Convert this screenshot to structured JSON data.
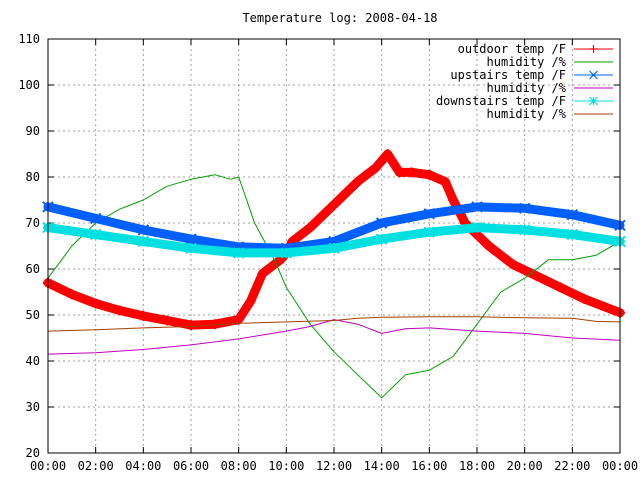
{
  "chart_data": {
    "type": "line",
    "title": "Temperature log: 2008-04-18",
    "xlabel": "",
    "ylabel": "",
    "xlim": [
      "00:00",
      "24:00"
    ],
    "ylim": [
      20,
      110
    ],
    "grid": true,
    "legend_position": "top-right",
    "x_tick_labels": [
      "00:00",
      "02:00",
      "04:00",
      "06:00",
      "08:00",
      "10:00",
      "12:00",
      "14:00",
      "16:00",
      "18:00",
      "20:00",
      "22:00",
      "00:00"
    ],
    "y_tick_labels": [
      "20",
      "30",
      "40",
      "50",
      "60",
      "70",
      "80",
      "90",
      "100",
      "110"
    ],
    "series": [
      {
        "name": "outdoor temp /F",
        "color": "#ff0000",
        "marker": "plus",
        "style": "thick",
        "points": [
          [
            "00:00",
            57
          ],
          [
            "01:00",
            54.5
          ],
          [
            "02:00",
            52.5
          ],
          [
            "03:00",
            51
          ],
          [
            "04:00",
            49.8
          ],
          [
            "05:00",
            48.8
          ],
          [
            "06:00",
            47.8
          ],
          [
            "07:00",
            48
          ],
          [
            "08:00",
            49
          ],
          [
            "08:30",
            53
          ],
          [
            "09:00",
            59
          ],
          [
            "09:45",
            62
          ],
          [
            "10:00",
            63.5
          ],
          [
            "10:15",
            66
          ],
          [
            "11:00",
            69
          ],
          [
            "12:00",
            74
          ],
          [
            "13:00",
            79
          ],
          [
            "13:45",
            82
          ],
          [
            "14:15",
            85
          ],
          [
            "14:45",
            81
          ],
          [
            "15:15",
            81
          ],
          [
            "16:00",
            80.5
          ],
          [
            "16:40",
            79
          ],
          [
            "17:00",
            75
          ],
          [
            "17:30",
            70
          ],
          [
            "18:30",
            65
          ],
          [
            "19:30",
            61
          ],
          [
            "20:30",
            58.5
          ],
          [
            "21:30",
            56
          ],
          [
            "22:30",
            53.5
          ],
          [
            "24:00",
            50.5
          ]
        ]
      },
      {
        "name": "humidity /%",
        "color": "#00a000",
        "marker": "none",
        "style": "thin",
        "points": [
          [
            "00:00",
            58
          ],
          [
            "01:00",
            65
          ],
          [
            "02:00",
            70
          ],
          [
            "03:00",
            73
          ],
          [
            "04:00",
            75
          ],
          [
            "05:00",
            78
          ],
          [
            "06:00",
            79.5
          ],
          [
            "07:00",
            80.5
          ],
          [
            "07:40",
            79.5
          ],
          [
            "08:00",
            80
          ],
          [
            "08:40",
            70
          ],
          [
            "09:30",
            62
          ],
          [
            "10:00",
            56
          ],
          [
            "11:00",
            48
          ],
          [
            "12:00",
            42
          ],
          [
            "13:00",
            37
          ],
          [
            "14:00",
            32
          ],
          [
            "15:00",
            37
          ],
          [
            "16:00",
            38
          ],
          [
            "17:00",
            41
          ],
          [
            "18:00",
            48
          ],
          [
            "19:00",
            55
          ],
          [
            "20:00",
            58
          ],
          [
            "21:00",
            62
          ],
          [
            "22:00",
            62
          ],
          [
            "23:00",
            63
          ],
          [
            "24:00",
            66
          ]
        ]
      },
      {
        "name": "upstairs temp /F",
        "color": "#0060ff",
        "marker": "x",
        "style": "thick",
        "points": [
          [
            "00:00",
            73.5
          ],
          [
            "02:00",
            71
          ],
          [
            "04:00",
            68.5
          ],
          [
            "06:00",
            66.5
          ],
          [
            "08:00",
            64.8
          ],
          [
            "10:00",
            64.5
          ],
          [
            "12:00",
            66
          ],
          [
            "14:00",
            70
          ],
          [
            "16:00",
            72
          ],
          [
            "18:00",
            73.5
          ],
          [
            "20:00",
            73.2
          ],
          [
            "22:00",
            71.8
          ],
          [
            "24:00",
            69.5
          ]
        ]
      },
      {
        "name": "humidity /%",
        "color": "#c000c0",
        "marker": "none",
        "style": "thin",
        "points": [
          [
            "00:00",
            41.5
          ],
          [
            "02:00",
            41.8
          ],
          [
            "04:00",
            42.5
          ],
          [
            "06:00",
            43.5
          ],
          [
            "08:00",
            44.8
          ],
          [
            "10:00",
            46.5
          ],
          [
            "11:00",
            47.5
          ],
          [
            "12:00",
            49
          ],
          [
            "13:00",
            48
          ],
          [
            "14:00",
            46
          ],
          [
            "15:00",
            47
          ],
          [
            "16:00",
            47.2
          ],
          [
            "18:00",
            46.5
          ],
          [
            "20:00",
            46
          ],
          [
            "22:00",
            45
          ],
          [
            "24:00",
            44.5
          ]
        ]
      },
      {
        "name": "downstairs temp /F",
        "color": "#00e0e0",
        "marker": "star",
        "style": "thick",
        "points": [
          [
            "00:00",
            69
          ],
          [
            "02:00",
            67.5
          ],
          [
            "04:00",
            66
          ],
          [
            "06:00",
            64.5
          ],
          [
            "08:00",
            63.5
          ],
          [
            "10:00",
            63.5
          ],
          [
            "12:00",
            64.5
          ],
          [
            "14:00",
            66.5
          ],
          [
            "16:00",
            68
          ],
          [
            "18:00",
            69
          ],
          [
            "20:00",
            68.5
          ],
          [
            "22:00",
            67.5
          ],
          [
            "24:00",
            66
          ]
        ]
      },
      {
        "name": "humidity /%",
        "color": "#a04000",
        "marker": "none",
        "style": "thin",
        "points": [
          [
            "00:00",
            46.5
          ],
          [
            "02:00",
            46.8
          ],
          [
            "04:00",
            47.2
          ],
          [
            "06:00",
            47.5
          ],
          [
            "08:00",
            48.2
          ],
          [
            "10:00",
            48.5
          ],
          [
            "12:00",
            48.8
          ],
          [
            "13:00",
            49.3
          ],
          [
            "14:00",
            49.5
          ],
          [
            "16:00",
            49.6
          ],
          [
            "18:00",
            49.6
          ],
          [
            "20:00",
            49.4
          ],
          [
            "22:00",
            49.3
          ],
          [
            "23:00",
            48.6
          ],
          [
            "24:00",
            48.5
          ]
        ]
      }
    ]
  }
}
